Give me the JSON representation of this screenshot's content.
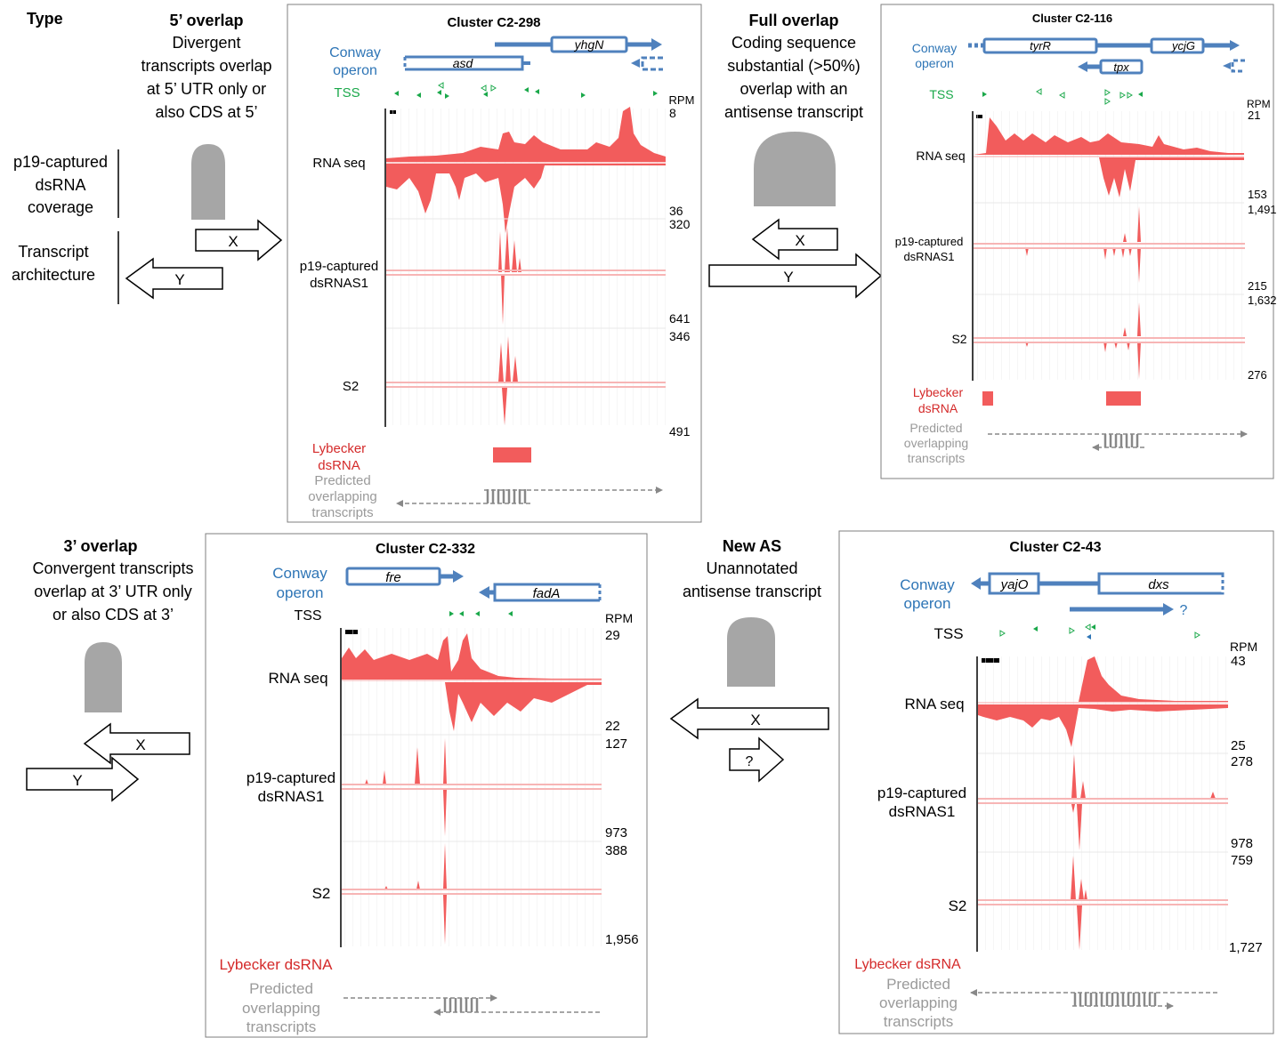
{
  "legend": {
    "type_label": "Type",
    "coverage_label": [
      "p19-captured",
      "dsRNA",
      "coverage"
    ],
    "architecture_label": [
      "Transcript",
      "architecture"
    ],
    "arrow_x": "X",
    "arrow_y": "Y",
    "arrow_q": "?"
  },
  "types": {
    "five_prime": {
      "title": "5’ overlap",
      "desc": [
        "Divergent",
        "transcripts overlap",
        "at 5’ UTR only or",
        "also CDS at 5’"
      ]
    },
    "full": {
      "title": "Full overlap",
      "desc": [
        "Coding sequence",
        "substantial (>50%)",
        "overlap with an",
        "antisense transcript"
      ]
    },
    "three_prime": {
      "title": "3’ overlap",
      "desc": [
        "Convergent transcripts",
        "overlap at 3’ UTR only",
        "or also CDS at 3’"
      ]
    },
    "new_as": {
      "title": "New AS",
      "desc": [
        "Unannotated",
        "antisense transcript"
      ]
    }
  },
  "common": {
    "conway": [
      "Conway",
      "operon"
    ],
    "tss": "TSS",
    "rpm": "RPM",
    "rnaseq": "RNA seq",
    "p19": [
      "p19-captured",
      "dsRNAS1"
    ],
    "s2": "S2",
    "lybecker": "Lybecker dsRNA",
    "lybecker_split": [
      "Lybecker",
      "dsRNA"
    ],
    "predicted": [
      "Predicted",
      "overlapping",
      "transcripts"
    ],
    "unknown_mark": "?"
  },
  "panels": {
    "c298": {
      "title": "Cluster C2-298",
      "genes": [
        "yhgN",
        "asd"
      ],
      "scale": [
        "8",
        "36",
        "320",
        "641",
        "346",
        "491"
      ]
    },
    "c116": {
      "title": "Cluster C2-116",
      "genes": [
        "tyrR",
        "ycjG",
        "tpx"
      ],
      "scale": [
        "21",
        "153",
        "1,491",
        "215",
        "1,632",
        "276"
      ]
    },
    "c332": {
      "title": "Cluster C2-332",
      "genes": [
        "fre",
        "fadA"
      ],
      "scale": [
        "29",
        "22",
        "127",
        "973",
        "388",
        "1,956"
      ]
    },
    "c43": {
      "title": "Cluster C2-43",
      "genes": [
        "yajO",
        "dxs"
      ],
      "scale": [
        "43",
        "25",
        "278",
        "978",
        "759",
        "1,727"
      ]
    }
  },
  "colors": {
    "signal": "#f25c5c",
    "operon": "#4f81bd",
    "tss": "#1aa84a",
    "lybecker": "#d42a2a",
    "grey": "#9a9a9a"
  }
}
